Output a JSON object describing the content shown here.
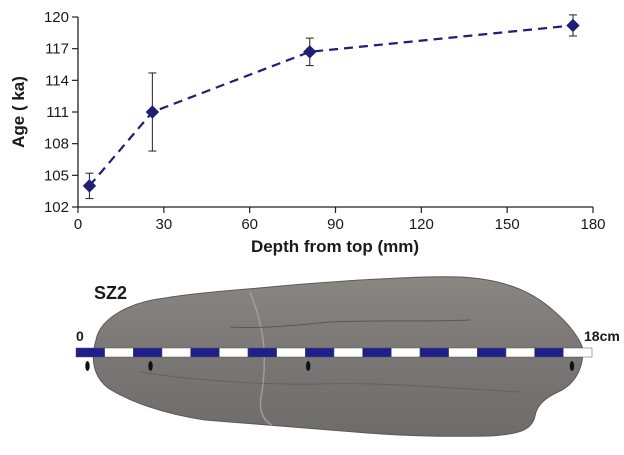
{
  "chart_data": {
    "type": "line",
    "xlabel": "Depth from top (mm)",
    "ylabel": "Age ( ka)",
    "xlim": [
      0,
      180
    ],
    "ylim": [
      102,
      120
    ],
    "xticks": [
      "0",
      "30",
      "60",
      "90",
      "120",
      "150",
      "180"
    ],
    "yticks": [
      "102",
      "105",
      "108",
      "111",
      "114",
      "117",
      "120"
    ],
    "grid": false,
    "line_style": "dashed",
    "marker": "diamond",
    "color": "#1f1f7a",
    "series": [
      {
        "points": [
          {
            "x": 4,
            "y": 104.0,
            "err": 1.2
          },
          {
            "x": 26,
            "y": 111.0,
            "err": 3.7
          },
          {
            "x": 81,
            "y": 116.7,
            "err": 1.3
          },
          {
            "x": 173,
            "y": 119.2,
            "err": 1.0
          }
        ]
      }
    ]
  },
  "specimen": {
    "label": "SZ2",
    "scale_start": "0",
    "scale_end": "18cm",
    "scale_color_dark": "#1e1e8c",
    "scale_color_light": "#ffffff"
  }
}
